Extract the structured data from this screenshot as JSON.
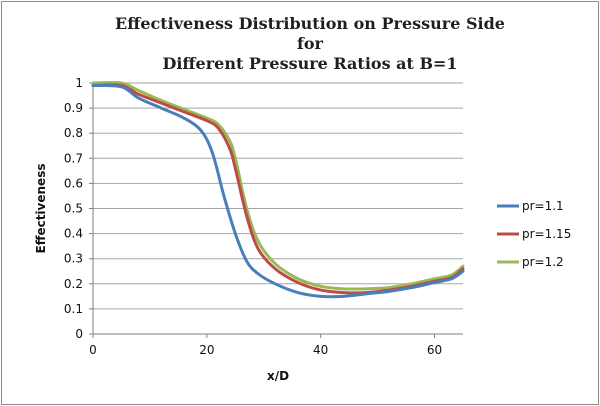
{
  "chart_data": {
    "type": "line",
    "title_line1": "Effectiveness Distribution on Pressure Side for",
    "title_line2": "Different Pressure Ratios at B=1",
    "xlabel": "x/D",
    "ylabel": "Effectiveness",
    "xlim": [
      0,
      65
    ],
    "ylim": [
      0,
      1
    ],
    "x_ticks": [
      0,
      20,
      40,
      60
    ],
    "y_ticks": [
      0,
      0.1,
      0.2,
      0.3,
      0.4,
      0.5,
      0.6,
      0.7,
      0.8,
      0.9,
      1
    ],
    "grid": "horizontal",
    "legend": "right",
    "series": [
      {
        "name": "pr=1.1",
        "color": "#4a7ebb",
        "points": [
          [
            0,
            0.99
          ],
          [
            5,
            0.985
          ],
          [
            8,
            0.94
          ],
          [
            12,
            0.9
          ],
          [
            16,
            0.86
          ],
          [
            19,
            0.81
          ],
          [
            21,
            0.72
          ],
          [
            23,
            0.55
          ],
          [
            25,
            0.4
          ],
          [
            27,
            0.29
          ],
          [
            29,
            0.24
          ],
          [
            32,
            0.2
          ],
          [
            36,
            0.165
          ],
          [
            40,
            0.15
          ],
          [
            44,
            0.15
          ],
          [
            48,
            0.16
          ],
          [
            52,
            0.17
          ],
          [
            56,
            0.185
          ],
          [
            60,
            0.205
          ],
          [
            63,
            0.22
          ],
          [
            65,
            0.25
          ]
        ]
      },
      {
        "name": "pr=1.15",
        "color": "#be4b48",
        "points": [
          [
            0,
            0.99
          ],
          [
            5,
            0.99
          ],
          [
            8,
            0.955
          ],
          [
            12,
            0.92
          ],
          [
            16,
            0.885
          ],
          [
            20,
            0.85
          ],
          [
            22,
            0.82
          ],
          [
            24,
            0.74
          ],
          [
            25,
            0.66
          ],
          [
            27,
            0.47
          ],
          [
            29,
            0.34
          ],
          [
            32,
            0.26
          ],
          [
            36,
            0.205
          ],
          [
            40,
            0.175
          ],
          [
            44,
            0.165
          ],
          [
            48,
            0.165
          ],
          [
            52,
            0.175
          ],
          [
            56,
            0.19
          ],
          [
            60,
            0.21
          ],
          [
            63,
            0.225
          ],
          [
            65,
            0.26
          ]
        ]
      },
      {
        "name": "pr=1.2",
        "color": "#98b954",
        "points": [
          [
            0,
            1.0
          ],
          [
            5,
            1.0
          ],
          [
            8,
            0.97
          ],
          [
            12,
            0.93
          ],
          [
            16,
            0.895
          ],
          [
            20,
            0.86
          ],
          [
            22,
            0.835
          ],
          [
            24,
            0.77
          ],
          [
            25,
            0.7
          ],
          [
            27,
            0.5
          ],
          [
            29,
            0.37
          ],
          [
            32,
            0.28
          ],
          [
            36,
            0.22
          ],
          [
            40,
            0.19
          ],
          [
            44,
            0.18
          ],
          [
            48,
            0.18
          ],
          [
            52,
            0.185
          ],
          [
            56,
            0.2
          ],
          [
            60,
            0.22
          ],
          [
            63,
            0.235
          ],
          [
            65,
            0.27
          ]
        ]
      }
    ]
  }
}
